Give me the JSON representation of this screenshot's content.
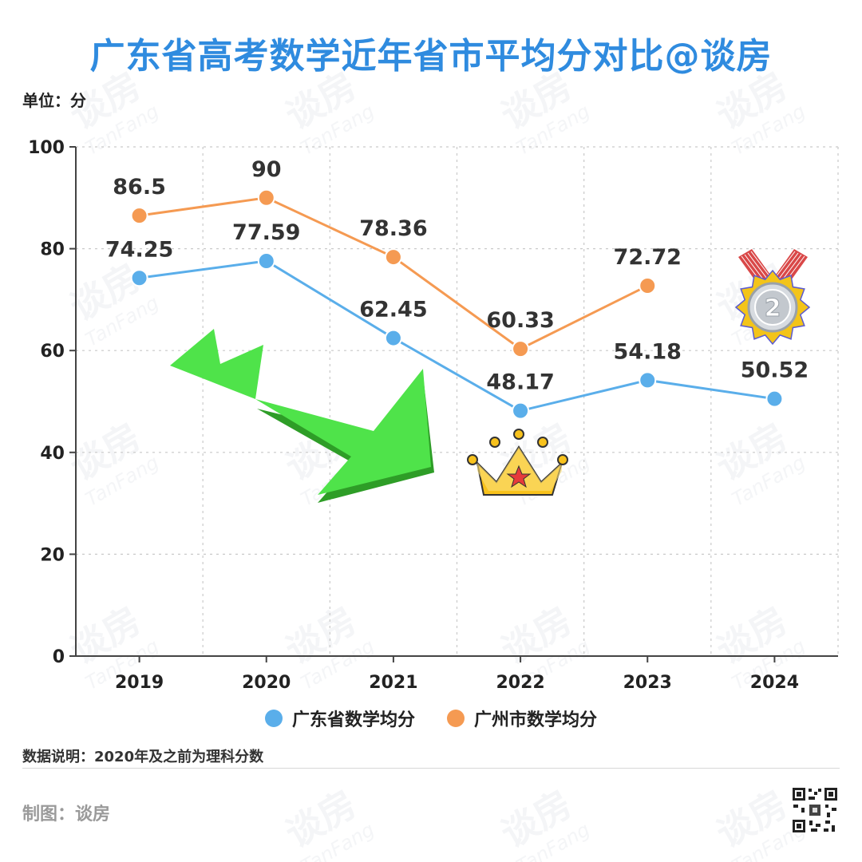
{
  "header": {
    "title": "广东省高考数学近年省市平均分对比@谈房",
    "unit": "单位：分"
  },
  "legend": {
    "series_1": "广东省数学均分",
    "series_2": "广州市数学均分"
  },
  "footer": {
    "note": "数据说明：2020年及之前为理科分数",
    "credit": "制图：谈房"
  },
  "watermark": {
    "cn": "谈房",
    "en": "TanFang"
  },
  "colors": {
    "series_1": "#5aaeea",
    "series_2": "#f59a52",
    "title": "#2f8bdf",
    "arrow": "#4fe34a",
    "crown": "#f8c21c",
    "medal": "#cfd3d8"
  },
  "icons": [
    "green-down-arrow-icon",
    "crown-icon",
    "silver-medal-icon",
    "qr-code-icon"
  ],
  "chart_data": {
    "type": "line",
    "categories": [
      "2019",
      "2020",
      "2021",
      "2022",
      "2023",
      "2024"
    ],
    "series": [
      {
        "name": "广东省数学均分",
        "values": [
          74.25,
          77.59,
          62.45,
          48.17,
          54.18,
          50.52
        ],
        "labels": [
          "74.25",
          "77.59",
          "62.45",
          "48.17",
          "54.18",
          "50.52"
        ]
      },
      {
        "name": "广州市数学均分",
        "values": [
          86.5,
          90,
          78.36,
          60.33,
          72.72,
          null
        ],
        "labels": [
          "86.5",
          "90",
          "78.36",
          "60.33",
          "72.72",
          null
        ]
      }
    ],
    "yticks": [
      "0",
      "20",
      "40",
      "60",
      "80",
      "100"
    ],
    "ylim": [
      0,
      100
    ],
    "grid": true,
    "legend_position": "bottom"
  }
}
